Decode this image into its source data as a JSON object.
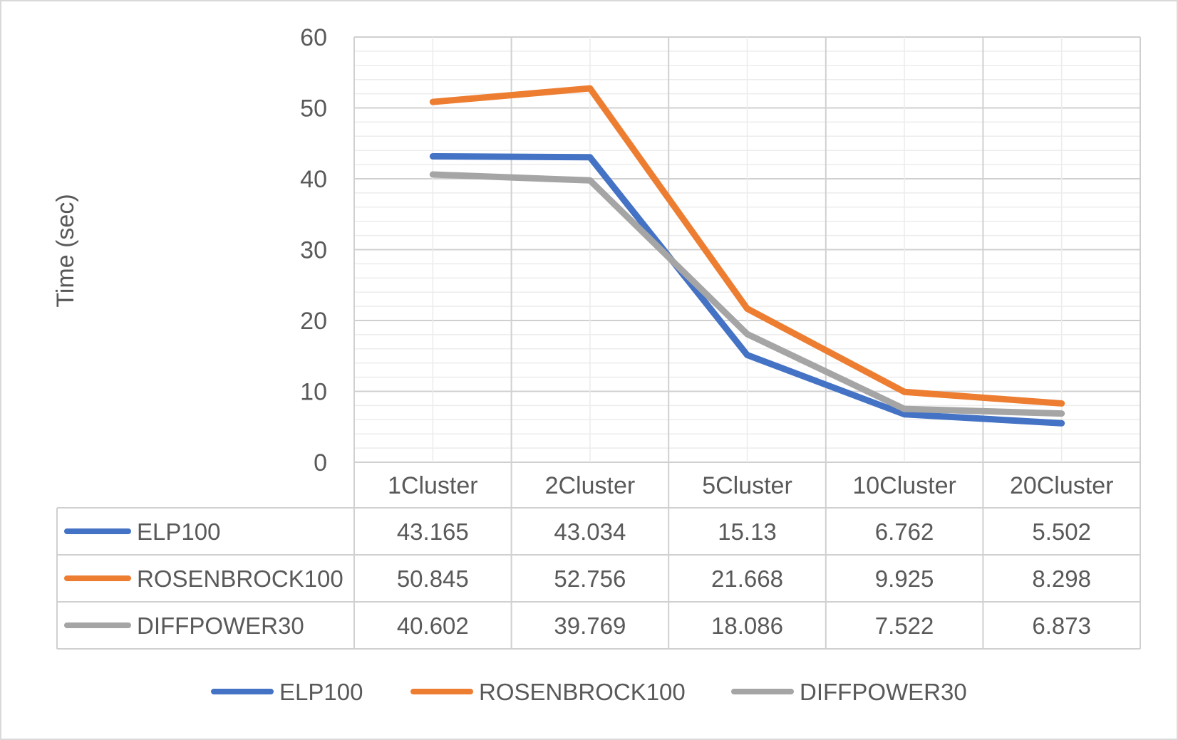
{
  "chart_data": {
    "type": "line",
    "title": "",
    "xlabel": "",
    "ylabel": "Time (sec)",
    "ylim": [
      0,
      60
    ],
    "yticks": [
      0,
      10,
      20,
      30,
      40,
      50,
      60
    ],
    "grid": true,
    "data_table": true,
    "legend_position": "bottom",
    "categories": [
      "1Cluster",
      "2Cluster",
      "5Cluster",
      "10Cluster",
      "20Cluster"
    ],
    "series": [
      {
        "name": "ELP100",
        "color": "#4472C4",
        "values": [
          43.165,
          43.034,
          15.13,
          6.762,
          5.502
        ],
        "labels": [
          "43.165",
          "43.034",
          "15.13",
          "6.762",
          "5.502"
        ]
      },
      {
        "name": "ROSENBROCK100",
        "color": "#ED7D31",
        "values": [
          50.845,
          52.756,
          21.668,
          9.925,
          8.298
        ],
        "labels": [
          "50.845",
          "52.756",
          "21.668",
          "9.925",
          "8.298"
        ]
      },
      {
        "name": "DIFFPOWER30",
        "color": "#A5A5A5",
        "values": [
          40.602,
          39.769,
          18.086,
          7.522,
          6.873
        ],
        "labels": [
          "40.602",
          "39.769",
          "18.086",
          "7.522",
          "6.873"
        ]
      }
    ]
  }
}
